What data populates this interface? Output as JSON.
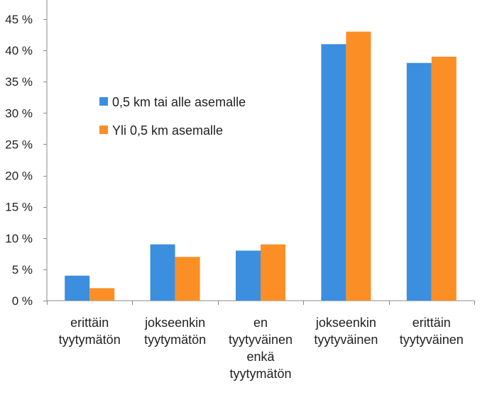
{
  "chart_data": {
    "type": "bar",
    "categories": [
      [
        "erittäin",
        "tyytymätön"
      ],
      [
        "jokseenkin",
        "tyytymätön"
      ],
      [
        "en",
        "tyytyväinen",
        "enkä",
        "tyytymätön"
      ],
      [
        "jokseenkin",
        "tyytyväinen"
      ],
      [
        "erittäin",
        "tyytyväinen"
      ]
    ],
    "series": [
      {
        "name": "0,5 km tai alle asemalle",
        "color": "#3c8ede",
        "values": [
          4,
          9,
          8,
          41,
          38
        ]
      },
      {
        "name": "Yli 0,5 km asemalle",
        "color": "#fb8f26",
        "values": [
          2,
          7,
          9,
          43,
          39
        ]
      }
    ],
    "yticks": [
      "0 %",
      "5 %",
      "10 %",
      "15 %",
      "20 %",
      "25 %",
      "30 %",
      "35 %",
      "40 %",
      "45 %"
    ],
    "ylim": [
      0,
      45
    ],
    "ystep": 5,
    "grid": false,
    "legend": "inside-left",
    "title": "",
    "xlabel": "",
    "ylabel": ""
  }
}
